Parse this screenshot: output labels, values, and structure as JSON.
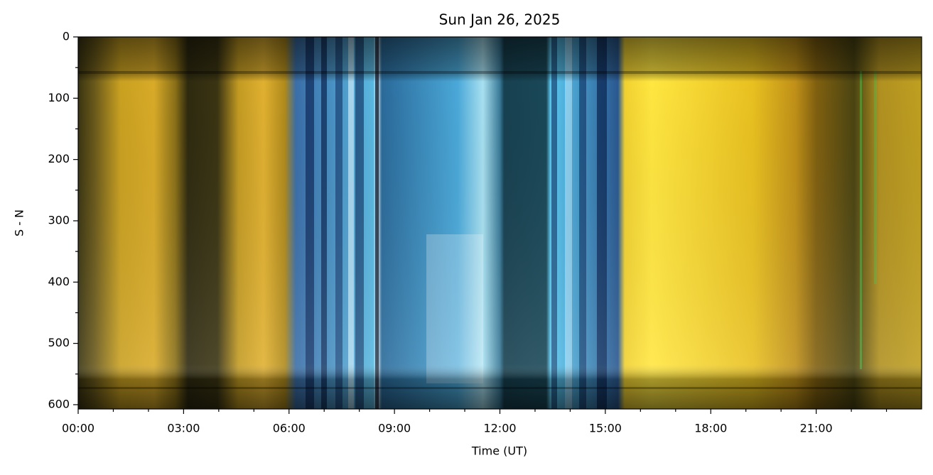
{
  "chart_data": {
    "type": "image",
    "title": "Sun Jan 26, 2025",
    "xlabel": "Time (UT)",
    "ylabel": "S - N",
    "xlim": [
      0,
      24
    ],
    "xticks": [
      {
        "value": 0,
        "label": "00:00"
      },
      {
        "value": 3,
        "label": "03:00"
      },
      {
        "value": 6,
        "label": "06:00"
      },
      {
        "value": 9,
        "label": "09:00"
      },
      {
        "value": 12,
        "label": "12:00"
      },
      {
        "value": 15,
        "label": "15:00"
      },
      {
        "value": 18,
        "label": "18:00"
      },
      {
        "value": 21,
        "label": "21:00"
      }
    ],
    "xminorticks": [
      1,
      2,
      4,
      5,
      7,
      8,
      10,
      11,
      13,
      14,
      16,
      17,
      19,
      20,
      22,
      23
    ],
    "ylim": [
      607,
      0
    ],
    "yticks": [
      0,
      100,
      200,
      300,
      400,
      500,
      600
    ],
    "yminorticks": [
      50,
      150,
      250,
      350,
      450,
      550
    ]
  }
}
